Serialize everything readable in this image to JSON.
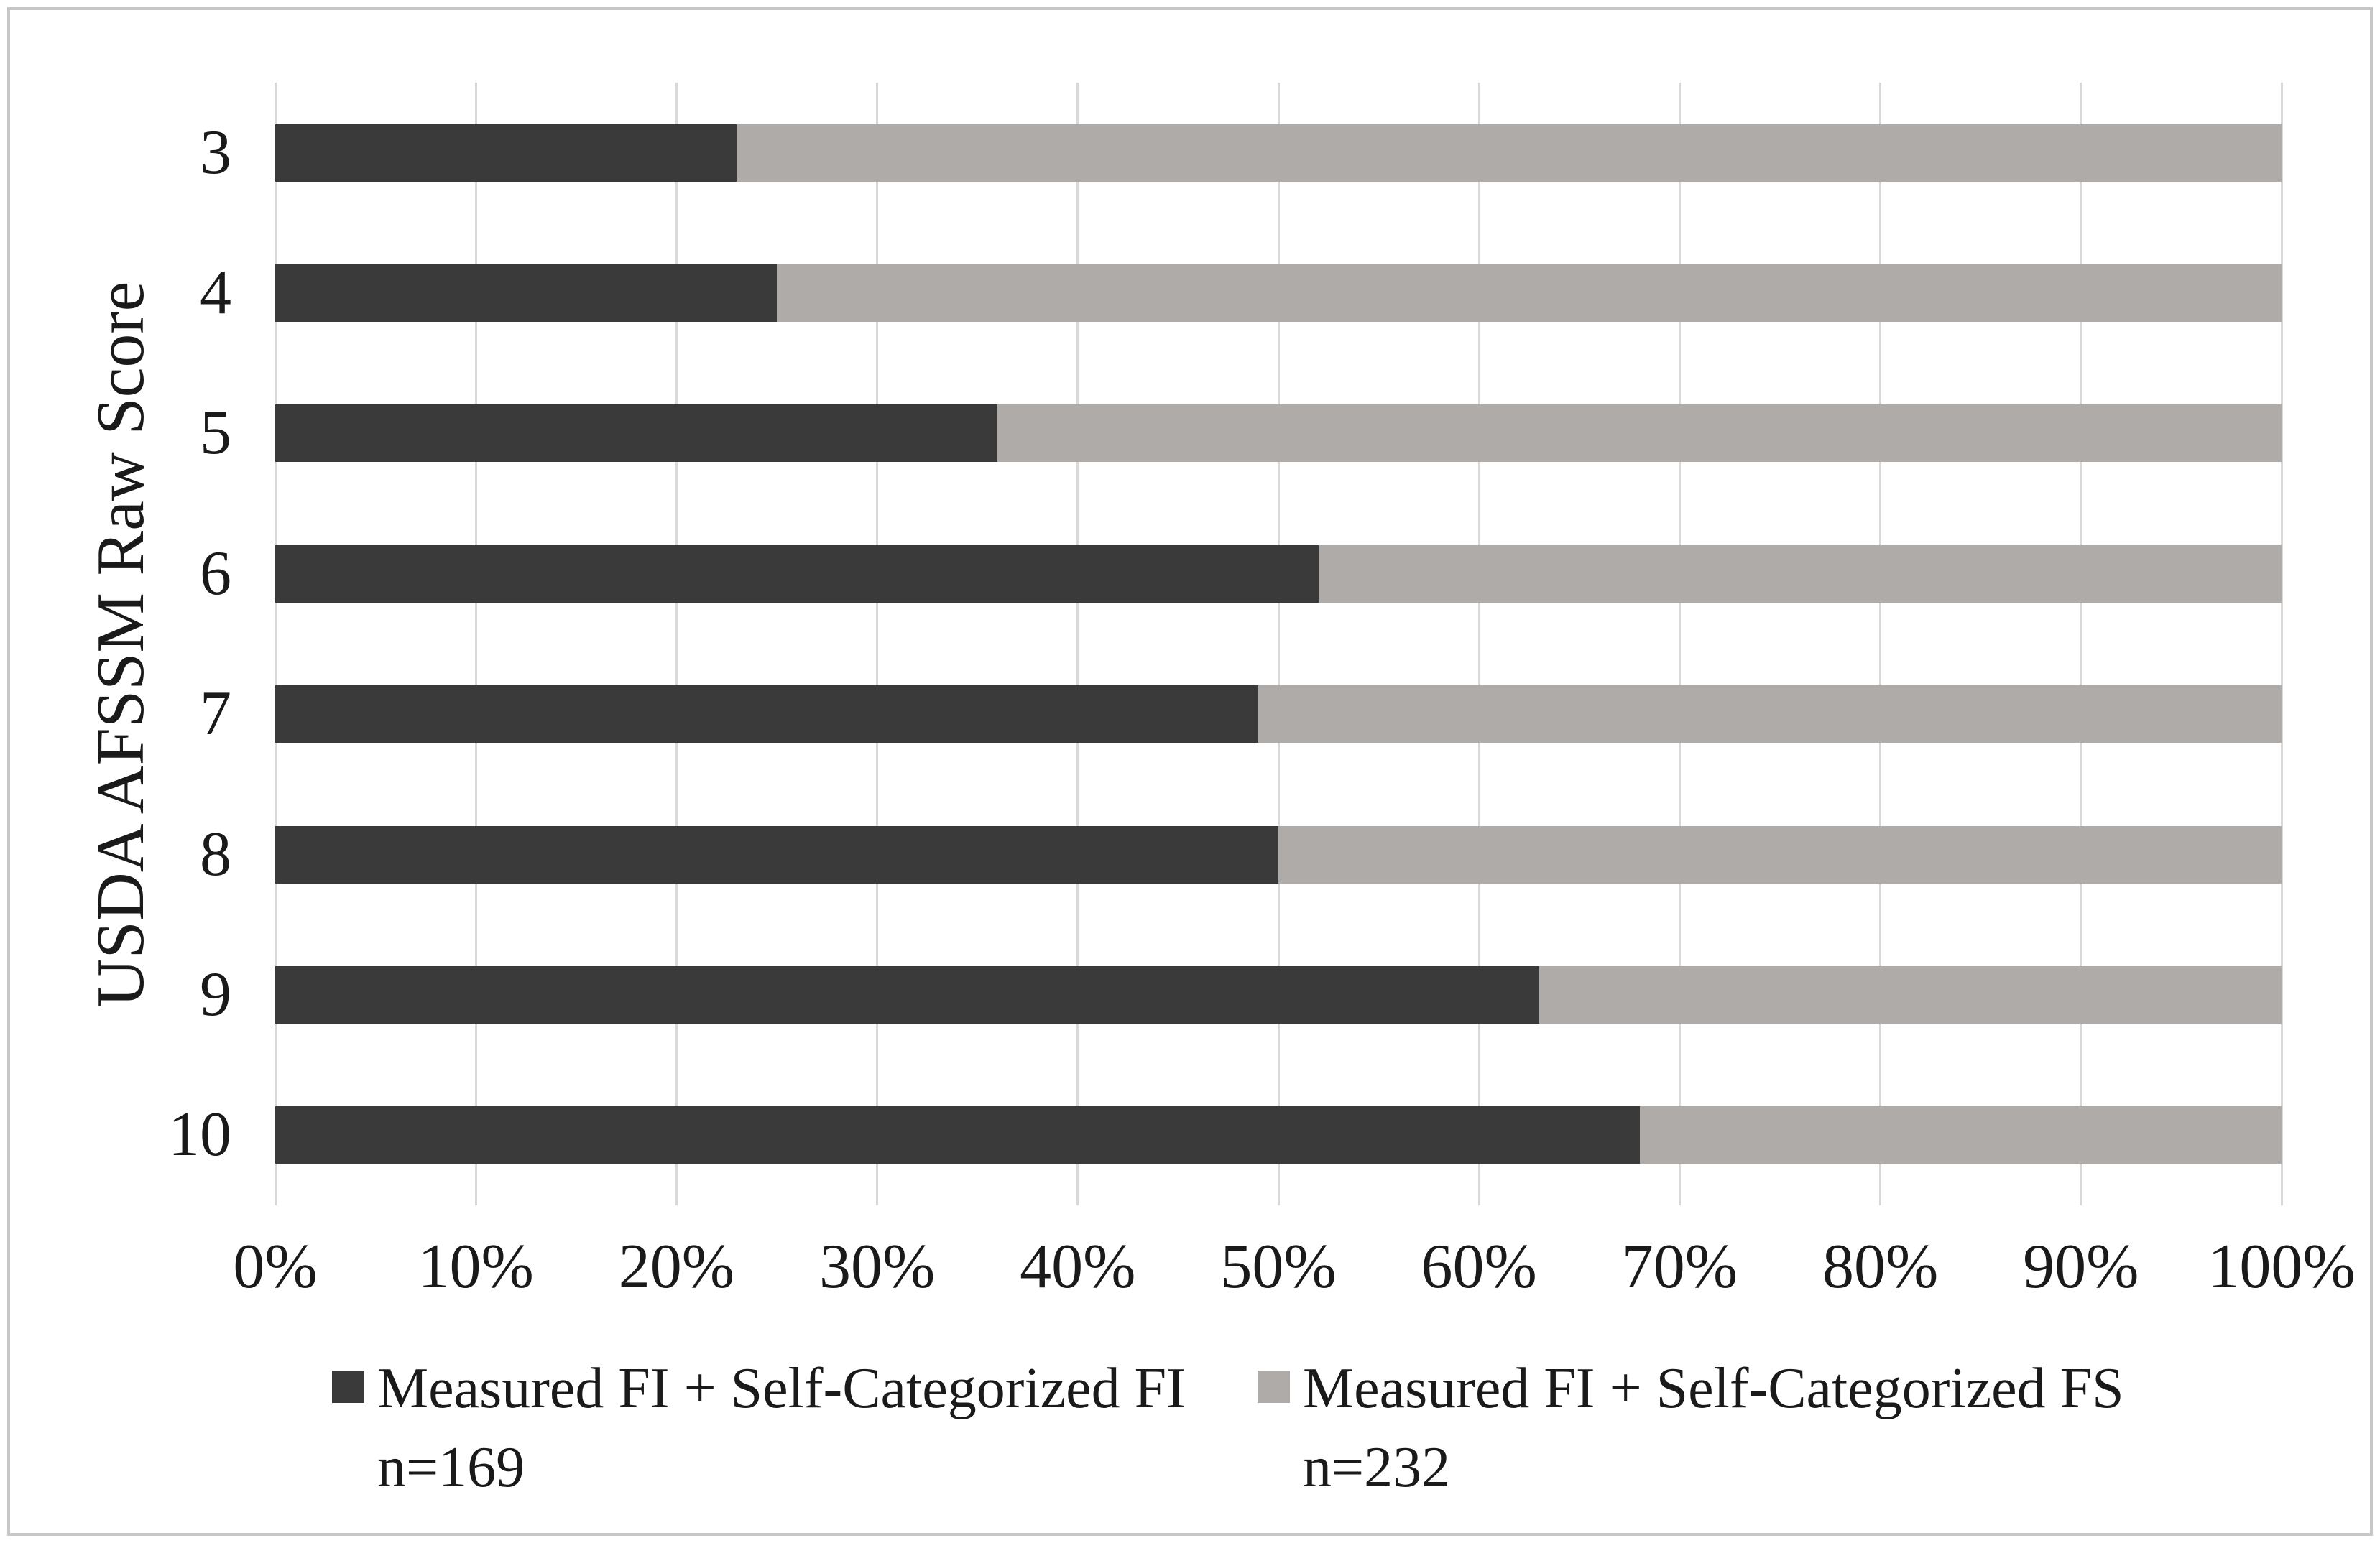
{
  "chart_data": {
    "type": "bar",
    "orientation": "horizontal",
    "stacked": true,
    "title": "",
    "xlabel": "",
    "ylabel": "USDA AFSSM Raw Score",
    "xlim": [
      0,
      100
    ],
    "x_tick_labels": [
      "0%",
      "10%",
      "20%",
      "30%",
      "40%",
      "50%",
      "60%",
      "70%",
      "80%",
      "90%",
      "100%"
    ],
    "categories": [
      "3",
      "4",
      "5",
      "6",
      "7",
      "8",
      "9",
      "10"
    ],
    "series": [
      {
        "name": "Measured FI + Self-Categorized FI n=169",
        "color": "#3a3a3a",
        "values": [
          23,
          25,
          36,
          52,
          49,
          50,
          63,
          68
        ]
      },
      {
        "name": "Measured FI + Self-Categorized FS n=232",
        "color": "#afaba8",
        "values": [
          77,
          75,
          64,
          48,
          51,
          50,
          37,
          32
        ]
      }
    ],
    "gridlines": "vertical-only",
    "legend_position": "bottom"
  },
  "legend": {
    "items": [
      {
        "label": "Measured FI + Self-Categorized FI",
        "count": "n=169",
        "color": "#3a3a3a"
      },
      {
        "label": "Measured FI + Self-Categorized FS",
        "count": "n=232",
        "color": "#afaba8"
      }
    ]
  },
  "colors": {
    "gridline": "#d9d9d9",
    "text": "#1a1a1a",
    "frame_border": "#c7c7c7",
    "background": "#ffffff"
  }
}
